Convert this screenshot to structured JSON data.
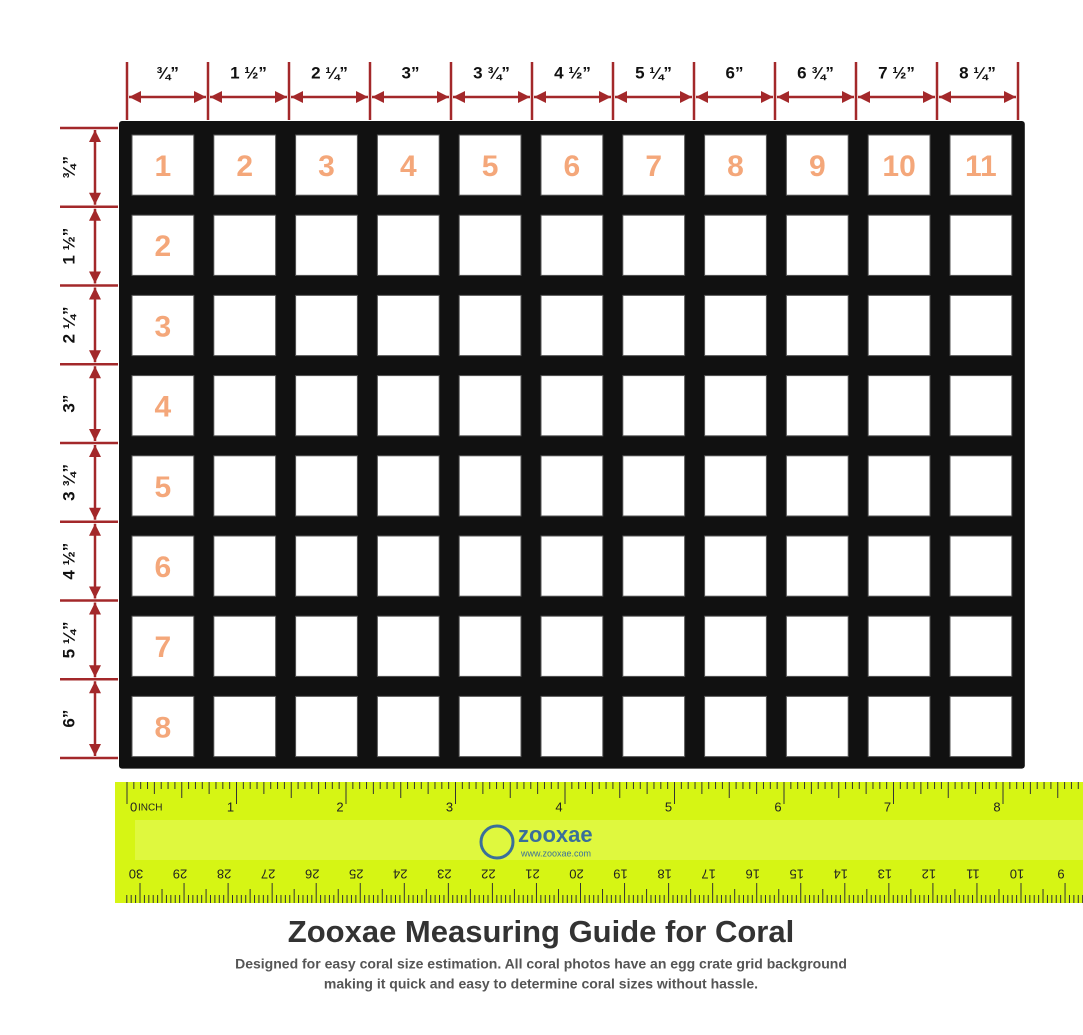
{
  "columns": [
    "¾”",
    "1 ½”",
    "2 ¼”",
    "3”",
    "3 ¾”",
    "4 ½”",
    "5 ¼”",
    "6”",
    "6 ¾”",
    "7 ½”",
    "8 ¼”"
  ],
  "rows": [
    "¾”",
    "1 ½”",
    "2 ¼”",
    "3”",
    "3 ¾”",
    "4 ½”",
    "5 ¼”",
    "6”"
  ],
  "column_numbers": [
    "1",
    "2",
    "3",
    "4",
    "5",
    "6",
    "7",
    "8",
    "9",
    "10",
    "11"
  ],
  "row_numbers": [
    "2",
    "3",
    "4",
    "5",
    "6",
    "7",
    "8"
  ],
  "ruler": {
    "inch_unit": "INCH",
    "inch_labels": [
      "0",
      "1",
      "2",
      "3",
      "4",
      "5",
      "6",
      "7",
      "8"
    ],
    "cm_labels": [
      "30",
      "29",
      "28",
      "27",
      "26",
      "25",
      "24",
      "23",
      "22",
      "21",
      "20",
      "19",
      "18",
      "17",
      "16",
      "15",
      "14",
      "13",
      "12",
      "11",
      "10",
      "9"
    ]
  },
  "logo": {
    "name": "zooxae",
    "url": "www.zooxae.com"
  },
  "title": "Zooxae Measuring Guide for Coral",
  "description": [
    "Designed for easy coral size estimation. All coral photos have an egg crate grid background",
    "making it quick and easy to determine coral sizes without hassle."
  ]
}
